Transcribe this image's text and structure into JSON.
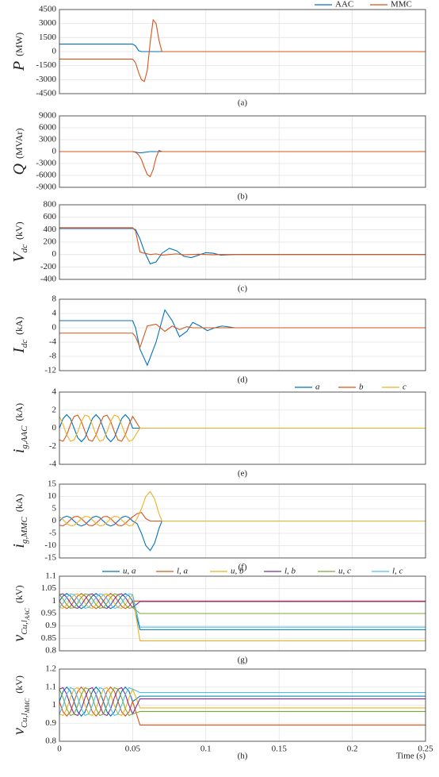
{
  "chart_data": [
    {
      "type": "line",
      "caption": "(a)",
      "ylabel": "P",
      "ylabel_sub": "",
      "ylabel_subsub": "",
      "yunit": "(MW)",
      "x": [
        0,
        0.05,
        0.052,
        0.054,
        0.056,
        0.058,
        0.06,
        0.062,
        0.064,
        0.066,
        0.068,
        0.07,
        0.25
      ],
      "series": [
        {
          "name": "AAC",
          "color": "#0072BD",
          "values": [
            800,
            800,
            600,
            100,
            0,
            0,
            0,
            0,
            0,
            0,
            0,
            0,
            0
          ]
        },
        {
          "name": "MMC",
          "color": "#D95319",
          "values": [
            -800,
            -800,
            -1200,
            -2200,
            -3000,
            -3200,
            -2000,
            1000,
            3400,
            3000,
            1200,
            0,
            0
          ]
        }
      ],
      "xlim": [
        0,
        0.25
      ],
      "xticks": [
        0,
        0.05,
        0.1,
        0.15,
        0.2,
        0.25
      ],
      "ylim": [
        -4500,
        4500
      ],
      "yticks": [
        -4500,
        -3000,
        -1500,
        0,
        1500,
        3000,
        4500
      ],
      "grid": true,
      "legend": "top-right"
    },
    {
      "type": "line",
      "caption": "(b)",
      "ylabel": "Q",
      "ylabel_sub": "",
      "ylabel_subsub": "",
      "yunit": "(MVAr)",
      "x": [
        0,
        0.05,
        0.052,
        0.054,
        0.056,
        0.058,
        0.06,
        0.062,
        0.064,
        0.066,
        0.068,
        0.07,
        0.25
      ],
      "series": [
        {
          "color": "#0072BD",
          "values": [
            0,
            0,
            -100,
            -300,
            -300,
            -200,
            -100,
            0,
            0,
            0,
            0,
            0,
            0
          ]
        },
        {
          "color": "#D95319",
          "values": [
            0,
            0,
            -200,
            -800,
            -2000,
            -4000,
            -5800,
            -6300,
            -4500,
            -1500,
            300,
            0,
            0
          ]
        }
      ],
      "xlim": [
        0,
        0.25
      ],
      "xticks": [
        0,
        0.05,
        0.1,
        0.15,
        0.2,
        0.25
      ],
      "ylim": [
        -9000,
        9000
      ],
      "yticks": [
        -9000,
        -6000,
        -3000,
        0,
        3000,
        6000,
        9000
      ],
      "grid": true
    },
    {
      "type": "line",
      "caption": "(c)",
      "ylabel": "V",
      "ylabel_sub": "dc",
      "ylabel_subsub": "",
      "yunit": "(kV)",
      "x": [
        0,
        0.05,
        0.052,
        0.055,
        0.058,
        0.062,
        0.066,
        0.07,
        0.075,
        0.08,
        0.085,
        0.09,
        0.095,
        0.1,
        0.105,
        0.11,
        0.12,
        0.25
      ],
      "series": [
        {
          "color": "#0072BD",
          "values": [
            420,
            420,
            400,
            250,
            50,
            -150,
            -120,
            20,
            100,
            60,
            -30,
            -50,
            -10,
            30,
            20,
            -10,
            0,
            0
          ]
        },
        {
          "color": "#D95319",
          "values": [
            430,
            430,
            380,
            40,
            20,
            0,
            10,
            -10,
            0,
            10,
            -5,
            0,
            5,
            0,
            -5,
            0,
            0,
            0
          ]
        }
      ],
      "xlim": [
        0,
        0.25
      ],
      "xticks": [
        0,
        0.05,
        0.1,
        0.15,
        0.2,
        0.25
      ],
      "ylim": [
        -400,
        800
      ],
      "yticks": [
        -400,
        -200,
        0,
        200,
        400,
        600,
        800
      ],
      "grid": true
    },
    {
      "type": "line",
      "caption": "(d)",
      "ylabel": "I",
      "ylabel_sub": "dc",
      "ylabel_subsub": "",
      "yunit": "(kA)",
      "x": [
        0,
        0.05,
        0.052,
        0.055,
        0.06,
        0.066,
        0.072,
        0.077,
        0.082,
        0.087,
        0.091,
        0.096,
        0.101,
        0.106,
        0.111,
        0.12,
        0.25
      ],
      "series": [
        {
          "color": "#0072BD",
          "values": [
            2,
            2,
            0,
            -6,
            -10.5,
            -4,
            5,
            2,
            -2.5,
            -1,
            1.5,
            0.5,
            -0.8,
            0,
            0.5,
            0,
            0
          ]
        },
        {
          "color": "#D95319",
          "values": [
            -1.5,
            -1.5,
            -2.5,
            -5.5,
            0.5,
            1,
            -1,
            0.5,
            -0.5,
            0.3,
            0,
            0,
            0,
            0,
            0,
            0,
            0
          ]
        }
      ],
      "xlim": [
        0,
        0.25
      ],
      "xticks": [
        0,
        0.05,
        0.1,
        0.15,
        0.2,
        0.25
      ],
      "ylim": [
        -12,
        8
      ],
      "yticks": [
        -12,
        -8,
        -4,
        0,
        4,
        8
      ],
      "grid": true
    },
    {
      "type": "line",
      "caption": "(e)",
      "ylabel": "i",
      "ylabel_sub": "g,AAC",
      "ylabel_subsub": "",
      "yunit": "(kA)",
      "x": [
        0,
        0.0025,
        0.005,
        0.0075,
        0.01,
        0.0125,
        0.015,
        0.0175,
        0.02,
        0.0225,
        0.025,
        0.0275,
        0.03,
        0.0325,
        0.035,
        0.0375,
        0.04,
        0.0425,
        0.045,
        0.0475,
        0.05,
        0.055,
        0.25
      ],
      "series": [
        {
          "name": "a",
          "color": "#0072BD",
          "values": [
            0,
            1.06,
            1.5,
            1.06,
            0,
            -1.06,
            -1.5,
            -1.06,
            0,
            1.06,
            1.5,
            1.06,
            0,
            -1.06,
            -1.5,
            -1.06,
            0,
            1.06,
            1.5,
            1.06,
            0,
            0,
            0
          ]
        },
        {
          "name": "b",
          "color": "#D95319",
          "values": [
            -1.3,
            -1.45,
            -0.75,
            0.39,
            1.3,
            1.45,
            0.75,
            -0.39,
            -1.3,
            -1.45,
            -0.75,
            0.39,
            1.3,
            1.45,
            0.75,
            -0.39,
            -1.3,
            -1.45,
            -0.75,
            0.39,
            1.3,
            0,
            0
          ]
        },
        {
          "name": "c",
          "color": "#EDB120",
          "values": [
            1.3,
            0.39,
            -0.75,
            -1.45,
            -1.3,
            -0.39,
            0.75,
            1.45,
            1.3,
            0.39,
            -0.75,
            -1.45,
            -1.3,
            -0.39,
            0.75,
            1.45,
            1.3,
            0.39,
            -0.75,
            -1.45,
            -1.3,
            0,
            0
          ]
        }
      ],
      "xlim": [
        0,
        0.25
      ],
      "xticks": [
        0,
        0.05,
        0.1,
        0.15,
        0.2,
        0.25
      ],
      "ylim": [
        -4,
        4
      ],
      "yticks": [
        -4,
        -2,
        0,
        2,
        4
      ],
      "grid": true,
      "legend": "top-right"
    },
    {
      "type": "line",
      "caption": "(f)",
      "ylabel": "i",
      "ylabel_sub": "g,MMC",
      "ylabel_subsub": "",
      "yunit": "(kA)",
      "x": [
        0,
        0.0025,
        0.005,
        0.0075,
        0.01,
        0.0125,
        0.015,
        0.0175,
        0.02,
        0.0225,
        0.025,
        0.0275,
        0.03,
        0.0325,
        0.035,
        0.0375,
        0.04,
        0.0425,
        0.045,
        0.0475,
        0.05,
        0.053,
        0.056,
        0.059,
        0.062,
        0.065,
        0.068,
        0.07,
        0.25
      ],
      "series": [
        {
          "color": "#0072BD",
          "values": [
            0,
            1.41,
            2,
            1.41,
            0,
            -1.41,
            -2,
            -1.41,
            0,
            1.41,
            2,
            1.41,
            0,
            -1.41,
            -2,
            -1.41,
            0,
            1.41,
            2,
            1.41,
            0,
            -1,
            -5,
            -10,
            -12,
            -9,
            -3,
            0,
            0
          ]
        },
        {
          "color": "#D95319",
          "values": [
            -1.73,
            -1.93,
            -1,
            0.52,
            1.73,
            1.93,
            1,
            -0.52,
            -1.73,
            -1.93,
            -1,
            0.52,
            1.73,
            1.93,
            1,
            -0.52,
            -1.73,
            -1.93,
            -1,
            0.52,
            1.73,
            3,
            3.5,
            1,
            0,
            0,
            0,
            0,
            0
          ]
        },
        {
          "color": "#EDB120",
          "values": [
            1.73,
            0.52,
            -1,
            -1.93,
            -1.73,
            -0.52,
            1,
            1.93,
            1.73,
            0.52,
            -1,
            -1.93,
            -1.73,
            -0.52,
            1,
            1.93,
            1.73,
            0.52,
            -1,
            -1.93,
            -1.73,
            1,
            5,
            10,
            12,
            9,
            3,
            0,
            0
          ]
        }
      ],
      "xlim": [
        0,
        0.25
      ],
      "xticks": [
        0,
        0.05,
        0.1,
        0.15,
        0.2,
        0.25
      ],
      "ylim": [
        -15,
        15
      ],
      "yticks": [
        -15,
        -10,
        -5,
        0,
        5,
        10,
        15
      ],
      "grid": true
    },
    {
      "type": "line",
      "caption": "(g)",
      "ylabel": "v",
      "ylabel_sub": "Cu,l",
      "ylabel_subsub": "AAC",
      "yunit": "(kV)",
      "x": [
        0,
        0.0025,
        0.005,
        0.0075,
        0.01,
        0.0125,
        0.015,
        0.0175,
        0.02,
        0.0225,
        0.025,
        0.0275,
        0.03,
        0.0325,
        0.035,
        0.0375,
        0.04,
        0.0425,
        0.045,
        0.0475,
        0.05,
        0.055,
        0.25
      ],
      "series": [
        {
          "name": "u, a",
          "color": "#0072BD",
          "values": [
            1,
            1.021,
            1.03,
            1.021,
            1,
            0.979,
            0.97,
            0.979,
            1,
            1.021,
            1.03,
            1.021,
            1,
            0.979,
            0.97,
            0.979,
            1,
            1.021,
            1.03,
            1.021,
            1,
            0.885,
            0.885
          ]
        },
        {
          "name": "l, a",
          "color": "#D95319",
          "values": [
            1,
            0.979,
            0.97,
            0.979,
            1,
            1.021,
            1.03,
            1.021,
            1,
            0.979,
            0.97,
            0.979,
            1,
            1.021,
            1.03,
            1.021,
            1,
            0.979,
            0.97,
            0.979,
            1,
            1,
            1
          ]
        },
        {
          "name": "u, b",
          "color": "#EDB120",
          "values": [
            0.974,
            0.971,
            0.985,
            1.008,
            1.026,
            1.029,
            1.015,
            0.992,
            0.974,
            0.971,
            0.985,
            1.008,
            1.026,
            1.029,
            1.015,
            0.992,
            0.974,
            0.971,
            0.985,
            1.008,
            1.026,
            0.84,
            0.84
          ]
        },
        {
          "name": "l, b",
          "color": "#7E2F8E",
          "values": [
            1.026,
            1.029,
            1.015,
            0.992,
            0.974,
            0.971,
            0.985,
            1.008,
            1.026,
            1.029,
            1.015,
            0.992,
            0.974,
            0.971,
            0.985,
            1.008,
            1.026,
            1.029,
            1.015,
            0.992,
            0.974,
            0.998,
            0.998
          ]
        },
        {
          "name": "u, c",
          "color": "#77AC30",
          "values": [
            1.026,
            1.008,
            0.985,
            0.971,
            0.974,
            0.992,
            1.015,
            1.029,
            1.026,
            1.008,
            0.985,
            0.971,
            0.974,
            0.992,
            1.015,
            1.029,
            1.026,
            1.008,
            0.985,
            0.971,
            0.974,
            0.95,
            0.95
          ]
        },
        {
          "name": "l, c",
          "color": "#4DBEEE",
          "values": [
            0.974,
            0.992,
            1.015,
            1.029,
            1.026,
            1.008,
            0.985,
            0.971,
            0.974,
            0.992,
            1.015,
            1.029,
            1.026,
            1.008,
            0.985,
            0.971,
            0.974,
            0.992,
            1.015,
            1.029,
            1.026,
            0.895,
            0.895
          ]
        }
      ],
      "xlim": [
        0,
        0.25
      ],
      "xticks": [
        0,
        0.05,
        0.1,
        0.15,
        0.2,
        0.25
      ],
      "ylim": [
        0.8,
        1.1
      ],
      "yticks": [
        0.8,
        0.85,
        0.9,
        0.95,
        1,
        1.05,
        1.1
      ],
      "grid": true,
      "legend": "top"
    },
    {
      "type": "line",
      "caption": "(h)",
      "ylabel": "v",
      "ylabel_sub": "Cu,l",
      "ylabel_subsub": "MMC",
      "yunit": "(kV)",
      "xlabel": "Time (s)",
      "x": [
        0,
        0.0025,
        0.005,
        0.0075,
        0.01,
        0.0125,
        0.015,
        0.0175,
        0.02,
        0.0225,
        0.025,
        0.0275,
        0.03,
        0.0325,
        0.035,
        0.0375,
        0.04,
        0.0425,
        0.045,
        0.0475,
        0.05,
        0.055,
        0.25
      ],
      "series": [
        {
          "color": "#0072BD",
          "values": [
            1.02,
            1.077,
            1.1,
            1.077,
            1.02,
            0.963,
            0.94,
            0.963,
            1.02,
            1.077,
            1.1,
            1.077,
            1.02,
            0.963,
            0.94,
            0.963,
            1.02,
            1.077,
            1.1,
            1.077,
            1.02,
            1.05,
            1.05
          ]
        },
        {
          "color": "#D95319",
          "values": [
            1.02,
            0.963,
            0.94,
            0.963,
            1.02,
            1.077,
            1.1,
            1.077,
            1.02,
            0.963,
            0.94,
            0.963,
            1.02,
            1.077,
            1.1,
            1.077,
            1.02,
            0.963,
            0.94,
            0.963,
            1.02,
            0.89,
            0.89
          ]
        },
        {
          "color": "#EDB120",
          "values": [
            0.951,
            0.943,
            0.98,
            1.041,
            1.089,
            1.097,
            1.06,
            0.999,
            0.951,
            0.943,
            0.98,
            1.041,
            1.089,
            1.097,
            1.06,
            0.999,
            0.951,
            0.943,
            0.98,
            1.041,
            1.089,
            0.985,
            0.985
          ]
        },
        {
          "color": "#7E2F8E",
          "values": [
            1.089,
            1.097,
            1.06,
            0.999,
            0.951,
            0.943,
            0.98,
            1.041,
            1.089,
            1.097,
            1.06,
            0.999,
            0.951,
            0.943,
            0.98,
            1.041,
            1.089,
            1.097,
            1.06,
            0.999,
            0.951,
            1.035,
            1.035
          ]
        },
        {
          "color": "#77AC30",
          "values": [
            1.089,
            1.041,
            0.98,
            0.943,
            0.951,
            0.999,
            1.06,
            1.097,
            1.089,
            1.041,
            0.98,
            0.943,
            0.951,
            0.999,
            1.06,
            1.097,
            1.089,
            1.041,
            0.98,
            0.943,
            0.951,
            0.965,
            0.965
          ]
        },
        {
          "color": "#4DBEEE",
          "values": [
            0.951,
            0.999,
            1.06,
            1.097,
            1.089,
            1.041,
            0.98,
            0.943,
            0.951,
            0.999,
            1.06,
            1.097,
            1.089,
            1.041,
            0.98,
            0.943,
            0.951,
            0.999,
            1.06,
            1.097,
            1.089,
            1.07,
            1.07
          ]
        }
      ],
      "xlim": [
        0,
        0.25
      ],
      "xticks": [
        0,
        0.05,
        0.1,
        0.15,
        0.2,
        0.25
      ],
      "show_xtick_labels": true,
      "ylim": [
        0.8,
        1.2
      ],
      "yticks": [
        0.8,
        0.9,
        1,
        1.1,
        1.2
      ],
      "grid": true
    }
  ]
}
